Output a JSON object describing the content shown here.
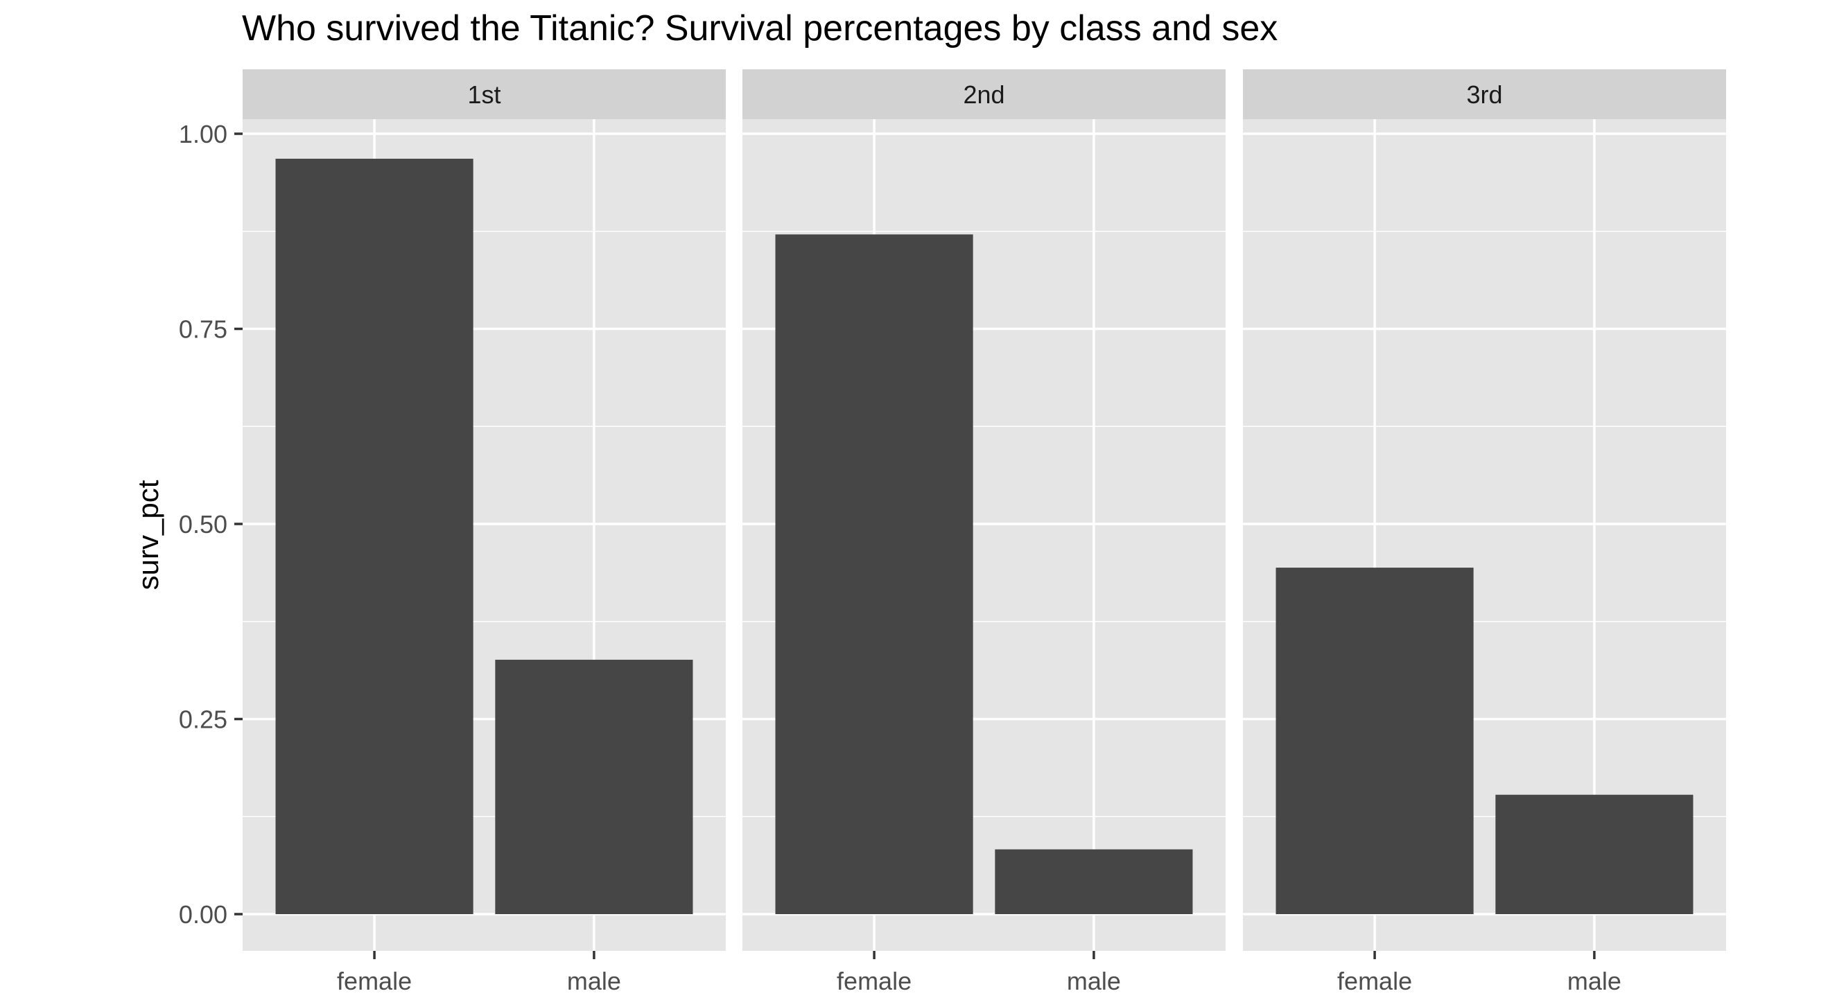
{
  "chart_data": {
    "type": "bar",
    "title": "Who survived the Titanic? Survival percentages by class and sex",
    "xlabel": "",
    "ylabel": "surv_pct",
    "ylim": [
      0,
      1.06
    ],
    "yticks": [
      "0.00",
      "0.25",
      "0.50",
      "0.75",
      "1.00"
    ],
    "categories": [
      "female",
      "male"
    ],
    "facets": [
      {
        "label": "1st",
        "values": [
          0.968,
          0.326
        ]
      },
      {
        "label": "2nd",
        "values": [
          0.871,
          0.083
        ]
      },
      {
        "label": "3rd",
        "values": [
          0.444,
          0.153
        ]
      }
    ],
    "grid": true,
    "legend": "none"
  },
  "colors": {
    "panel_background": "#e5e5e5",
    "strip_background": "#d2d2d2",
    "bar_fill": "#464646",
    "grid_line": "#ffffff",
    "text": "#000000",
    "tick_text": "#4d4d4d",
    "axis_tick": "#333333"
  }
}
